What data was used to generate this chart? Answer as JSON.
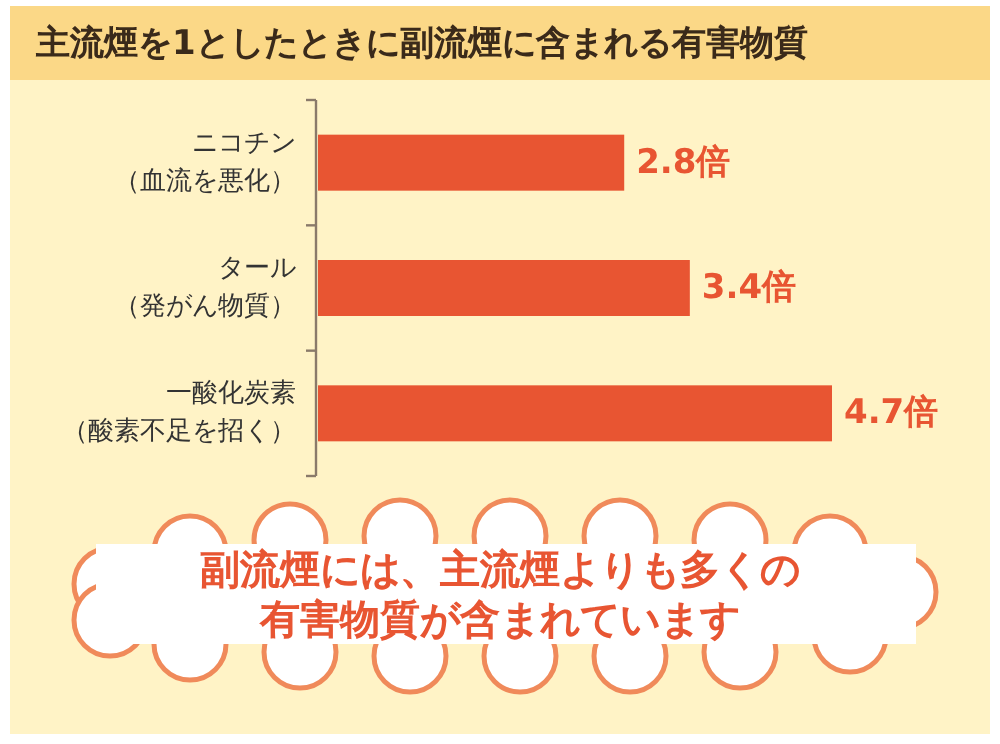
{
  "chart_data": {
    "type": "bar",
    "orientation": "horizontal",
    "title": "主流煙を1としたときに副流煙に含まれる有害物質",
    "categories": [
      "ニコチン（血流を悪化）",
      "タール（発がん物質）",
      "一酸化炭素（酸素不足を招く）"
    ],
    "values": [
      2.8,
      3.4,
      4.7
    ],
    "color": "#e85532",
    "value_labels": [
      "2.8倍",
      "3.4倍",
      "4.7倍"
    ],
    "annotations": [
      "副流煙には、主流煙よりも多くの有害物質が含まれています"
    ]
  }
}
